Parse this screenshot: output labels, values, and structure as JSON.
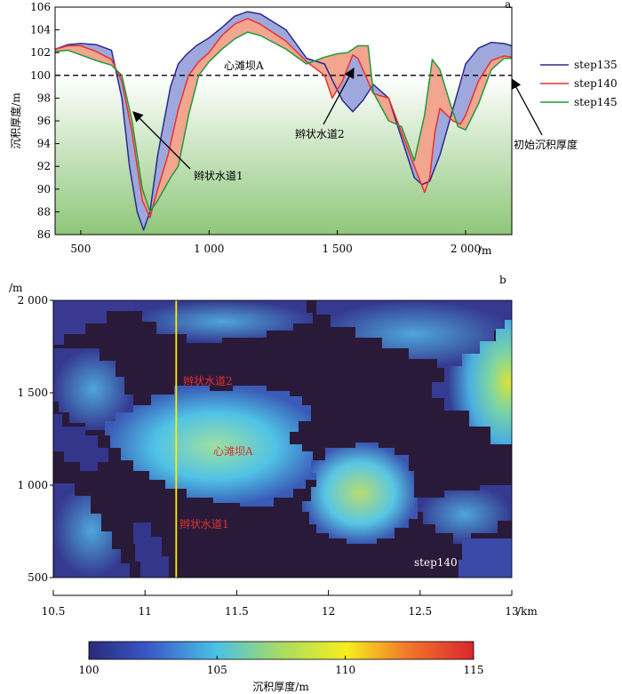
{
  "panel_a": {
    "panel_label": "a",
    "ylabel": "沉积厚度/m",
    "x_unit": "/m",
    "x_ticks": [
      "500",
      "1 000",
      "1 500",
      "2 000"
    ],
    "y_ticks": [
      "86",
      "88",
      "90",
      "92",
      "94",
      "96",
      "98",
      "100",
      "102",
      "104",
      "106"
    ],
    "annotations": {
      "bar": "心滩坝A",
      "channel1": "辫状水道1",
      "channel2": "辫状水道2",
      "initial": "初始沉积厚度"
    }
  },
  "panel_b": {
    "panel_label": "b",
    "y_unit": "/m",
    "x_unit": "/km",
    "x_ticks": [
      "10.5",
      "11",
      "11.5",
      "12",
      "12.5",
      "13"
    ],
    "y_ticks": [
      "500",
      "1 000",
      "1 500",
      "2 000"
    ],
    "labels": {
      "channel2": "辫状水道2",
      "bar": "心滩坝A",
      "channel1": "辫状水道1",
      "step": "step140"
    },
    "colorbar": {
      "ticks": [
        "100",
        "105",
        "110",
        "115"
      ],
      "label": "沉积厚度/m"
    }
  },
  "colors": {
    "step135": "#2b2a8c",
    "step140": "#e8322b",
    "step145": "#1f9a3a",
    "fill_blue": "#9fa8dc",
    "fill_red": "#f2a58f",
    "fill_green": "#b7dca0",
    "map_dark": "#2a1a3a",
    "section_line": "#ffee00"
  },
  "chart_data": [
    {
      "type": "line",
      "xlim": [
        400,
        2180
      ],
      "ylim": [
        86,
        106
      ],
      "grid": false,
      "legend": "right",
      "reference_line": {
        "y": 100,
        "style": "dashed",
        "label": "初始沉积厚度"
      },
      "series": [
        {
          "name": "step135",
          "x": [
            400,
            450,
            500,
            560,
            620,
            660,
            690,
            720,
            745,
            770,
            800,
            850,
            880,
            910,
            950,
            1000,
            1050,
            1100,
            1150,
            1200,
            1300,
            1380,
            1450,
            1480,
            1520,
            1560,
            1600,
            1640,
            1700,
            1750,
            1800,
            1830,
            1860,
            1900,
            1950,
            2000,
            2050,
            2100,
            2150,
            2180
          ],
          "y": [
            102.3,
            102.7,
            102.8,
            102.7,
            102.2,
            98.0,
            92.0,
            88.0,
            86.4,
            88.0,
            93.0,
            99.0,
            101.0,
            101.8,
            102.6,
            103.3,
            104.2,
            105.2,
            105.6,
            105.4,
            104.0,
            101.5,
            101.0,
            99.6,
            97.8,
            96.8,
            97.8,
            99.2,
            98.0,
            94.5,
            91.0,
            90.4,
            90.7,
            93.0,
            97.0,
            101.0,
            102.4,
            102.9,
            102.8,
            102.6
          ]
        },
        {
          "name": "step140",
          "x": [
            400,
            450,
            500,
            560,
            620,
            660,
            700,
            740,
            770,
            800,
            840,
            880,
            920,
            960,
            1000,
            1050,
            1100,
            1150,
            1200,
            1300,
            1380,
            1450,
            1480,
            1520,
            1560,
            1580,
            1600,
            1640,
            1700,
            1750,
            1800,
            1840,
            1860,
            1880,
            1900,
            1950,
            1980,
            2000,
            2050,
            2100,
            2150,
            2180
          ],
          "y": [
            102.3,
            102.6,
            102.6,
            102.1,
            101.4,
            99.5,
            95.0,
            89.0,
            87.5,
            90.0,
            93.0,
            97.0,
            100.0,
            101.2,
            102.0,
            103.5,
            104.5,
            105.0,
            104.5,
            103.0,
            101.2,
            100.0,
            98.0,
            99.5,
            101.8,
            101.5,
            100.5,
            98.4,
            98.0,
            95.0,
            92.0,
            89.7,
            91.0,
            95.0,
            97.1,
            96.0,
            95.7,
            96.5,
            99.5,
            101.3,
            101.7,
            101.6
          ]
        },
        {
          "name": "step145",
          "x": [
            400,
            450,
            500,
            560,
            620,
            660,
            700,
            740,
            770,
            800,
            850,
            880,
            920,
            960,
            1000,
            1050,
            1100,
            1150,
            1200,
            1300,
            1380,
            1450,
            1500,
            1540,
            1580,
            1620,
            1640,
            1700,
            1750,
            1800,
            1840,
            1870,
            1900,
            1940,
            1970,
            2000,
            2050,
            2100,
            2150,
            2180
          ],
          "y": [
            102.1,
            102.2,
            101.8,
            101.3,
            100.9,
            100.0,
            96.0,
            90.0,
            88.0,
            89.0,
            91.0,
            92.0,
            96.5,
            100.0,
            101.2,
            102.3,
            103.2,
            103.8,
            103.5,
            102.3,
            101.0,
            101.6,
            101.9,
            102.0,
            102.6,
            102.6,
            98.5,
            96.0,
            95.5,
            92.5,
            96.5,
            101.4,
            100.5,
            97.5,
            95.5,
            95.2,
            97.5,
            100.5,
            101.5,
            101.5
          ]
        }
      ]
    },
    {
      "type": "heatmap",
      "xlim": [
        10.5,
        13
      ],
      "ylim": [
        500,
        2000
      ],
      "color_range": [
        100,
        115
      ],
      "section_line_x": 11.17,
      "annotations": [
        "辫状水道2",
        "心滩坝A",
        "辫状水道1",
        "step140"
      ]
    }
  ]
}
